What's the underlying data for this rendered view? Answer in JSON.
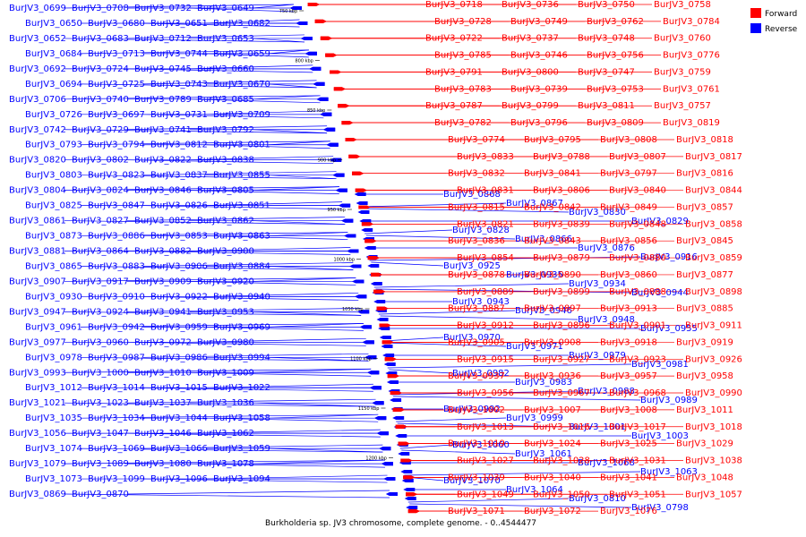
{
  "caption": "Burkholderia sp. JV3 chromosome, complete genome. - 0..4544477",
  "legend": [
    {
      "label": "Forward",
      "color": "#ff0000"
    },
    {
      "label": "Reverse",
      "color": "#0000ff"
    }
  ],
  "colors": {
    "forward": "#ff0000",
    "reverse": "#0000ff",
    "backbone": "#999999"
  },
  "ticks": [
    "750 kbp",
    "800 kbp",
    "850 kbp",
    "900 kbp",
    "950 kbp",
    "1000 kbp",
    "1050 kbp",
    "1100 kbp",
    "1150 kbp",
    "1200 kbp"
  ],
  "forward_genes": [
    "BurJV3_0718",
    "BurJV3_0736",
    "BurJV3_0750",
    "BurJV3_0758",
    "BurJV3_0728",
    "BurJV3_0749",
    "BurJV3_0762",
    "BurJV3_0784",
    "BurJV3_0722",
    "BurJV3_0737",
    "BurJV3_0748",
    "BurJV3_0760",
    "BurJV3_0785",
    "BurJV3_0746",
    "BurJV3_0756",
    "BurJV3_0776",
    "BurJV3_0791",
    "BurJV3_0800",
    "BurJV3_0747",
    "BurJV3_0759",
    "BurJV3_0783",
    "BurJV3_0739",
    "BurJV3_0753",
    "BurJV3_0761",
    "BurJV3_0787",
    "BurJV3_0799",
    "BurJV3_0811",
    "BurJV3_0757",
    "BurJV3_0782",
    "BurJV3_0796",
    "BurJV3_0809",
    "BurJV3_0819",
    "BurJV3_0774",
    "BurJV3_0795",
    "BurJV3_0808",
    "BurJV3_0818",
    "BurJV3_0833",
    "BurJV3_0788",
    "BurJV3_0807",
    "BurJV3_0817",
    "BurJV3_0832",
    "BurJV3_0841",
    "BurJV3_0797",
    "BurJV3_0816",
    "BurJV3_0831",
    "BurJV3_0806",
    "BurJV3_0840",
    "BurJV3_0844",
    "BurJV3_0815",
    "BurJV3_0842",
    "BurJV3_0849",
    "BurJV3_0857",
    "BurJV3_0821",
    "BurJV3_0839",
    "BurJV3_0848",
    "BurJV3_0858",
    "BurJV3_0836",
    "BurJV3_0843",
    "BurJV3_0856",
    "BurJV3_0845",
    "BurJV3_0854",
    "BurJV3_0879",
    "BurJV3_0880",
    "BurJV3_0859",
    "BurJV3_0878",
    "BurJV3_0890",
    "BurJV3_0860",
    "BurJV3_0877",
    "BurJV3_0889",
    "BurJV3_0899",
    "BurJV3_0888",
    "BurJV3_0898",
    "BurJV3_0887",
    "BurJV3_0897",
    "BurJV3_0913",
    "BurJV3_0885",
    "BurJV3_0912",
    "BurJV3_0896",
    "BurJV3_0901",
    "BurJV3_0911",
    "BurJV3_0905",
    "BurJV3_0908",
    "BurJV3_0918",
    "BurJV3_0919",
    "BurJV3_0915",
    "BurJV3_0927",
    "BurJV3_0923",
    "BurJV3_0926",
    "BurJV3_0937",
    "BurJV3_0936",
    "BurJV3_0957",
    "BurJV3_0958",
    "BurJV3_0956",
    "BurJV3_0967",
    "BurJV3_0968",
    "BurJV3_0990",
    "BurJV3_1002",
    "BurJV3_1007",
    "BurJV3_1008",
    "BurJV3_1011",
    "BurJV3_1013",
    "BurJV3_1016",
    "BurJV3_1017",
    "BurJV3_1018",
    "BurJV3_1019",
    "BurJV3_1024",
    "BurJV3_1025",
    "BurJV3_1029",
    "BurJV3_1027",
    "BurJV3_1028",
    "BurJV3_1031",
    "BurJV3_1038",
    "BurJV3_1039",
    "BurJV3_1040",
    "BurJV3_1041",
    "BurJV3_1048",
    "BurJV3_1049",
    "BurJV3_1050",
    "BurJV3_1051",
    "BurJV3_1057",
    "BurJV3_1071",
    "BurJV3_1072",
    "BurJV3_1076"
  ],
  "reverse_genes": [
    "BurJV3_0699",
    "BurJV3_0708",
    "BurJV3_0732",
    "BurJV3_0649",
    "BurJV3_0650",
    "BurJV3_0680",
    "BurJV3_0651",
    "BurJV3_0682",
    "BurJV3_0652",
    "BurJV3_0683",
    "BurJV3_0712",
    "BurJV3_0653",
    "BurJV3_0684",
    "BurJV3_0713",
    "BurJV3_0744",
    "BurJV3_0659",
    "BurJV3_0692",
    "BurJV3_0724",
    "BurJV3_0745",
    "BurJV3_0660",
    "BurJV3_0694",
    "BurJV3_0725",
    "BurJV3_0743",
    "BurJV3_0670",
    "BurJV3_0706",
    "BurJV3_0740",
    "BurJV3_0789",
    "BurJV3_0685",
    "BurJV3_0726",
    "BurJV3_0697",
    "BurJV3_0731",
    "BurJV3_0709",
    "BurJV3_0742",
    "BurJV3_0729",
    "BurJV3_0741",
    "BurJV3_0792",
    "BurJV3_0793",
    "BurJV3_0794",
    "BurJV3_0812",
    "BurJV3_0801",
    "BurJV3_0820",
    "BurJV3_0802",
    "BurJV3_0822",
    "BurJV3_0838",
    "BurJV3_0803",
    "BurJV3_0823",
    "BurJV3_0837",
    "BurJV3_0855",
    "BurJV3_0804",
    "BurJV3_0824",
    "BurJV3_0846",
    "BurJV3_0805",
    "BurJV3_0825",
    "BurJV3_0847",
    "BurJV3_0826",
    "BurJV3_0851",
    "BurJV3_0861",
    "BurJV3_0827",
    "BurJV3_0852",
    "BurJV3_0862",
    "BurJV3_0873",
    "BurJV3_0886",
    "BurJV3_0853",
    "BurJV3_0863",
    "BurJV3_0881",
    "BurJV3_0864",
    "BurJV3_0882",
    "BurJV3_0900",
    "BurJV3_0865",
    "BurJV3_0883",
    "BurJV3_0906",
    "BurJV3_0884",
    "BurJV3_0907",
    "BurJV3_0917",
    "BurJV3_0909",
    "BurJV3_0920",
    "BurJV3_0930",
    "BurJV3_0910",
    "BurJV3_0922",
    "BurJV3_0940",
    "BurJV3_0947",
    "BurJV3_0924",
    "BurJV3_0941",
    "BurJV3_0953",
    "BurJV3_0961",
    "BurJV3_0942",
    "BurJV3_0959",
    "BurJV3_0969",
    "BurJV3_0977",
    "BurJV3_0960",
    "BurJV3_0972",
    "BurJV3_0980",
    "BurJV3_0978",
    "BurJV3_0987",
    "BurJV3_0986",
    "BurJV3_0994",
    "BurJV3_0993",
    "BurJV3_1000",
    "BurJV3_1010",
    "BurJV3_1009",
    "BurJV3_1012",
    "BurJV3_1014",
    "BurJV3_1015",
    "BurJV3_1022",
    "BurJV3_1021",
    "BurJV3_1023",
    "BurJV3_1037",
    "BurJV3_1036",
    "BurJV3_1035",
    "BurJV3_1034",
    "BurJV3_1044",
    "BurJV3_1058",
    "BurJV3_1056",
    "BurJV3_1047",
    "BurJV3_1046",
    "BurJV3_1062",
    "BurJV3_1074",
    "BurJV3_1069",
    "BurJV3_1066",
    "BurJV3_1059",
    "BurJV3_1079",
    "BurJV3_1089",
    "BurJV3_1080",
    "BurJV3_1078",
    "BurJV3_1073",
    "BurJV3_1099",
    "BurJV3_1096",
    "BurJV3_1094",
    "BurJV3_0869",
    "BurJV3_0870",
    "BurJV3_0868",
    "BurJV3_0867",
    "BurJV3_0830",
    "BurJV3_0829",
    "BurJV3_0828",
    "BurJV3_0866",
    "BurJV3_0876",
    "BurJV3_0916",
    "BurJV3_0925",
    "BurJV3_0935",
    "BurJV3_0934",
    "BurJV3_0944",
    "BurJV3_0943",
    "BurJV3_0946",
    "BurJV3_0948",
    "BurJV3_0955",
    "BurJV3_0970",
    "BurJV3_0971",
    "BurJV3_0979",
    "BurJV3_0981",
    "BurJV3_0982",
    "BurJV3_0983",
    "BurJV3_0988",
    "BurJV3_0989",
    "BurJV3_0992",
    "BurJV3_0999",
    "BurJV3_1001",
    "BurJV3_1003",
    "BurJV3_1060",
    "BurJV3_1061",
    "BurJV3_1068",
    "BurJV3_1063",
    "BurJV3_1070",
    "BurJV3_1064",
    "BurJV3_0810",
    "BurJV3_0798"
  ]
}
